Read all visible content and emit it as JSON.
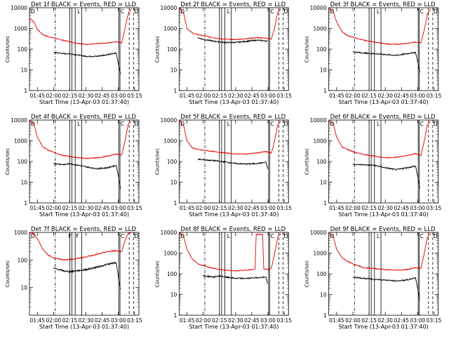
{
  "chart_data": [
    {
      "type": "line",
      "title": "Det 1f BLACK = Events, RED = LLD",
      "xlabel": "Start Time (13-Apr-03 01:37:40)",
      "ylabel": "Counts/sec",
      "yscale": "log",
      "ylim": [
        1,
        10000
      ],
      "yticks": [
        "1",
        "10",
        "100",
        "1000",
        "10000"
      ],
      "xticks": [
        "01:45",
        "02:00",
        "02:15",
        "02:30",
        "02:45",
        "03:00",
        "03:15"
      ],
      "corner_labels": [
        "D",
        "L",
        "C",
        "D"
      ],
      "series": [
        {
          "color": "#e00000",
          "x": [
            "01:38",
            "01:42",
            "01:45",
            "01:50",
            "01:55",
            "02:00",
            "02:05",
            "02:10",
            "02:15",
            "02:20",
            "02:30",
            "02:40",
            "02:50",
            "02:58",
            "03:03",
            "03:06",
            "03:09",
            "03:12"
          ],
          "y": [
            3000,
            2000,
            900,
            500,
            400,
            350,
            300,
            260,
            230,
            200,
            170,
            180,
            200,
            230,
            200,
            900,
            5000,
            9000
          ]
        },
        {
          "color": "#000000",
          "x": [
            "02:00",
            "02:05",
            "02:10",
            "02:15",
            "02:20",
            "02:30",
            "02:40",
            "02:50",
            "02:55",
            "02:58",
            "03:00",
            "03:02"
          ],
          "y": [
            70,
            65,
            60,
            60,
            55,
            45,
            45,
            55,
            60,
            65,
            20,
            6
          ]
        }
      ]
    },
    {
      "type": "line",
      "title": "Det 2f BLACK = Events, RED = LLD",
      "xlabel": "Start Time (13-Apr-03 01:37:40)",
      "ylabel": "Counts/sec",
      "yscale": "log",
      "ylim": [
        1,
        10000
      ],
      "yticks": [
        "1",
        "10",
        "100",
        "1000",
        "10000"
      ],
      "xticks": [
        "01:45",
        "02:00",
        "02:15",
        "02:30",
        "02:45",
        "03:00",
        "03:15"
      ],
      "corner_labels": [
        "D",
        "L",
        "C",
        "D"
      ],
      "series": [
        {
          "color": "#e00000",
          "x": [
            "01:38",
            "01:42",
            "01:45",
            "01:50",
            "01:55",
            "02:00",
            "02:10",
            "02:20",
            "02:30",
            "02:40",
            "02:50",
            "02:58",
            "03:03",
            "03:06",
            "03:09",
            "03:12"
          ],
          "y": [
            10000,
            5000,
            1000,
            600,
            500,
            450,
            350,
            300,
            290,
            320,
            360,
            340,
            300,
            1000,
            6000,
            9000
          ]
        },
        {
          "color": "#000000",
          "x": [
            "01:55",
            "02:00",
            "02:10",
            "02:20",
            "02:30",
            "02:40",
            "02:50",
            "02:58",
            "03:00"
          ],
          "y": [
            350,
            300,
            240,
            210,
            210,
            240,
            270,
            250,
            240
          ]
        }
      ]
    },
    {
      "type": "line",
      "title": "Det 3f BLACK = Events, RED = LLD",
      "xlabel": "Start Time (13-Apr-03 01:37:40)",
      "ylabel": "Counts/sec",
      "yscale": "log",
      "ylim": [
        1,
        10000
      ],
      "yticks": [
        "1",
        "10",
        "100",
        "1000",
        "10000"
      ],
      "xticks": [
        "01:45",
        "02:00",
        "02:15",
        "02:30",
        "02:45",
        "03:00",
        "03:15"
      ],
      "corner_labels": [
        "D",
        "L",
        "C",
        "D"
      ],
      "series": [
        {
          "color": "#e00000",
          "x": [
            "01:38",
            "01:42",
            "01:45",
            "01:50",
            "01:55",
            "02:00",
            "02:05",
            "02:10",
            "02:20",
            "02:30",
            "02:40",
            "02:50",
            "02:58",
            "03:03",
            "03:06",
            "03:09",
            "03:12"
          ],
          "y": [
            10000,
            6000,
            2000,
            700,
            450,
            380,
            320,
            270,
            220,
            180,
            170,
            190,
            220,
            200,
            800,
            5000,
            9000
          ]
        },
        {
          "color": "#000000",
          "x": [
            "02:00",
            "02:05",
            "02:10",
            "02:20",
            "02:30",
            "02:40",
            "02:50",
            "02:58",
            "03:00",
            "03:02"
          ],
          "y": [
            75,
            70,
            65,
            60,
            55,
            50,
            60,
            70,
            25,
            7
          ]
        }
      ]
    },
    {
      "type": "line",
      "title": "Det 4f BLACK = Events, RED = LLD",
      "xlabel": "Start Time (13-Apr-03 01:37:40)",
      "ylabel": "Counts/sec",
      "yscale": "log",
      "ylim": [
        1,
        10000
      ],
      "yticks": [
        "1",
        "10",
        "100",
        "1000",
        "10000"
      ],
      "xticks": [
        "01:45",
        "02:00",
        "02:15",
        "02:30",
        "02:45",
        "03:00",
        "03:15"
      ],
      "corner_labels": [
        "D",
        "L",
        "C",
        "D"
      ],
      "series": [
        {
          "color": "#e00000",
          "x": [
            "01:38",
            "01:42",
            "01:45",
            "01:50",
            "01:55",
            "02:00",
            "02:05",
            "02:10",
            "02:20",
            "02:30",
            "02:40",
            "02:50",
            "02:58",
            "03:03",
            "03:06",
            "03:09",
            "03:12"
          ],
          "y": [
            10000,
            6000,
            1500,
            500,
            350,
            280,
            220,
            190,
            160,
            140,
            150,
            180,
            230,
            200,
            900,
            6000,
            9000
          ]
        },
        {
          "color": "#000000",
          "x": [
            "02:00",
            "02:05",
            "02:10",
            "02:15",
            "02:20",
            "02:30",
            "02:40",
            "02:50",
            "02:58",
            "03:00",
            "03:02"
          ],
          "y": [
            80,
            75,
            70,
            80,
            70,
            55,
            45,
            50,
            65,
            20,
            5
          ]
        }
      ]
    },
    {
      "type": "line",
      "title": "Det 5f BLACK = Events, RED = LLD",
      "xlabel": "Start Time (13-Apr-03 01:37:40)",
      "ylabel": "Counts/sec",
      "yscale": "log",
      "ylim": [
        1,
        10000
      ],
      "yticks": [
        "1",
        "10",
        "100",
        "1000",
        "10000"
      ],
      "xticks": [
        "01:45",
        "02:00",
        "02:15",
        "02:30",
        "02:45",
        "03:00",
        "03:15"
      ],
      "corner_labels": [
        "D",
        "L",
        "C",
        "D"
      ],
      "series": [
        {
          "color": "#e00000",
          "x": [
            "01:38",
            "01:42",
            "01:45",
            "01:50",
            "01:55",
            "02:00",
            "02:10",
            "02:20",
            "02:30",
            "02:40",
            "02:50",
            "02:58",
            "03:03",
            "03:06",
            "03:09",
            "03:12"
          ],
          "y": [
            10000,
            5000,
            1000,
            450,
            380,
            350,
            300,
            260,
            230,
            230,
            260,
            300,
            250,
            900,
            6000,
            9000
          ]
        },
        {
          "color": "#000000",
          "x": [
            "01:55",
            "02:00",
            "02:10",
            "02:20",
            "02:30",
            "02:40",
            "02:50",
            "02:58",
            "03:00"
          ],
          "y": [
            130,
            120,
            110,
            95,
            80,
            75,
            80,
            90,
            40
          ]
        }
      ]
    },
    {
      "type": "line",
      "title": "Det 6f BLACK = Events, RED = LLD",
      "xlabel": "Start Time (13-Apr-03 01:37:40)",
      "ylabel": "Counts/sec",
      "yscale": "log",
      "ylim": [
        1,
        10000
      ],
      "yticks": [
        "1",
        "10",
        "100",
        "1000",
        "10000"
      ],
      "xticks": [
        "01:45",
        "02:00",
        "02:15",
        "02:30",
        "02:45",
        "03:00",
        "03:15"
      ],
      "corner_labels": [
        "D",
        "L",
        "C",
        "D"
      ],
      "series": [
        {
          "color": "#e00000",
          "x": [
            "01:38",
            "01:42",
            "01:45",
            "01:50",
            "01:55",
            "02:00",
            "02:05",
            "02:10",
            "02:20",
            "02:30",
            "02:40",
            "02:50",
            "02:58",
            "03:03",
            "03:06",
            "03:09",
            "03:12"
          ],
          "y": [
            10000,
            6000,
            1500,
            500,
            380,
            300,
            250,
            220,
            180,
            150,
            160,
            190,
            240,
            200,
            900,
            6000,
            9000
          ]
        },
        {
          "color": "#000000",
          "x": [
            "02:00",
            "02:05",
            "02:10",
            "02:20",
            "02:30",
            "02:40",
            "02:50",
            "02:58",
            "03:00",
            "03:02"
          ],
          "y": [
            75,
            70,
            70,
            65,
            50,
            40,
            50,
            60,
            20,
            5
          ]
        }
      ]
    },
    {
      "type": "line",
      "title": "Det 7f BLACK = Events, RED = LLD",
      "xlabel": "Start Time (13-Apr-03 01:37:40)",
      "ylabel": "Counts/sec",
      "yscale": "log",
      "ylim": [
        1,
        1000
      ],
      "yticks": [
        "10",
        "100",
        "1000"
      ],
      "xticks": [
        "01:45",
        "02:00",
        "02:15",
        "02:30",
        "02:45",
        "03:00",
        "03:15"
      ],
      "corner_labels": [
        "D",
        "F",
        "F",
        "C",
        "D"
      ],
      "series": [
        {
          "color": "#e00000",
          "x": [
            "01:38",
            "01:42",
            "01:45",
            "01:50",
            "01:55",
            "02:00",
            "02:05",
            "02:10",
            "02:20",
            "02:30",
            "02:40",
            "02:50",
            "02:58",
            "03:03",
            "03:06",
            "03:09",
            "03:12"
          ],
          "y": [
            1000,
            900,
            600,
            250,
            150,
            120,
            110,
            100,
            110,
            130,
            160,
            200,
            220,
            200,
            500,
            900,
            1000
          ]
        },
        {
          "color": "#000000",
          "x": [
            "02:00",
            "02:05",
            "02:10",
            "02:15",
            "02:20",
            "02:30",
            "02:40",
            "02:50",
            "02:58",
            "03:00",
            "03:02"
          ],
          "y": [
            50,
            45,
            40,
            38,
            40,
            45,
            55,
            70,
            80,
            25,
            8
          ]
        }
      ]
    },
    {
      "type": "line",
      "title": "Det 8f BLACK = Events, RED = LLD",
      "xlabel": "Start Time (13-Apr-03 01:37:40)",
      "ylabel": "Counts/sec",
      "yscale": "log",
      "ylim": [
        1,
        10000
      ],
      "yticks": [
        "1",
        "10",
        "100",
        "1000",
        "10000"
      ],
      "xticks": [
        "01:45",
        "02:00",
        "02:15",
        "02:30",
        "02:45",
        "03:00",
        "03:15"
      ],
      "corner_labels": [
        "D",
        "L",
        "C",
        "D"
      ],
      "series": [
        {
          "color": "#e00000",
          "x": [
            "01:38",
            "01:42",
            "01:45",
            "01:50",
            "01:55",
            "02:00",
            "02:10",
            "02:20",
            "02:30",
            "02:40",
            "02:48",
            "02:49",
            "02:55",
            "02:56",
            "03:00",
            "03:03",
            "03:06",
            "03:09",
            "03:12"
          ],
          "y": [
            10000,
            6000,
            1500,
            500,
            300,
            250,
            180,
            150,
            140,
            150,
            170,
            8000,
            8000,
            170,
            160,
            180,
            900,
            6000,
            9000
          ]
        },
        {
          "color": "#000000",
          "x": [
            "02:00",
            "02:10",
            "02:15",
            "02:20",
            "02:30",
            "02:40",
            "02:50",
            "02:58",
            "03:00"
          ],
          "y": [
            80,
            70,
            80,
            70,
            60,
            60,
            65,
            70,
            30
          ]
        }
      ]
    },
    {
      "type": "line",
      "title": "Det 9f BLACK = Events, RED = LLD",
      "xlabel": "Start Time (13-Apr-03 01:37:40)",
      "ylabel": "Counts/sec",
      "yscale": "log",
      "ylim": [
        1,
        10000
      ],
      "yticks": [
        "1",
        "10",
        "100",
        "1000",
        "10000"
      ],
      "xticks": [
        "01:45",
        "02:00",
        "02:15",
        "02:30",
        "02:45",
        "03:00",
        "03:15"
      ],
      "corner_labels": [
        "D",
        "L",
        "C",
        "D"
      ],
      "series": [
        {
          "color": "#e00000",
          "x": [
            "01:38",
            "01:42",
            "01:45",
            "01:50",
            "01:55",
            "02:00",
            "02:05",
            "02:10",
            "02:20",
            "02:30",
            "02:40",
            "02:50",
            "02:58",
            "03:03",
            "03:06",
            "03:09",
            "03:12"
          ],
          "y": [
            10000,
            6000,
            1500,
            600,
            400,
            300,
            250,
            200,
            180,
            160,
            150,
            160,
            200,
            180,
            900,
            6000,
            9000
          ]
        },
        {
          "color": "#000000",
          "x": [
            "02:00",
            "02:05",
            "02:10",
            "02:20",
            "02:30",
            "02:40",
            "02:50",
            "02:58",
            "03:00",
            "03:02"
          ],
          "y": [
            70,
            65,
            60,
            55,
            50,
            45,
            50,
            65,
            20,
            5
          ]
        }
      ]
    }
  ]
}
